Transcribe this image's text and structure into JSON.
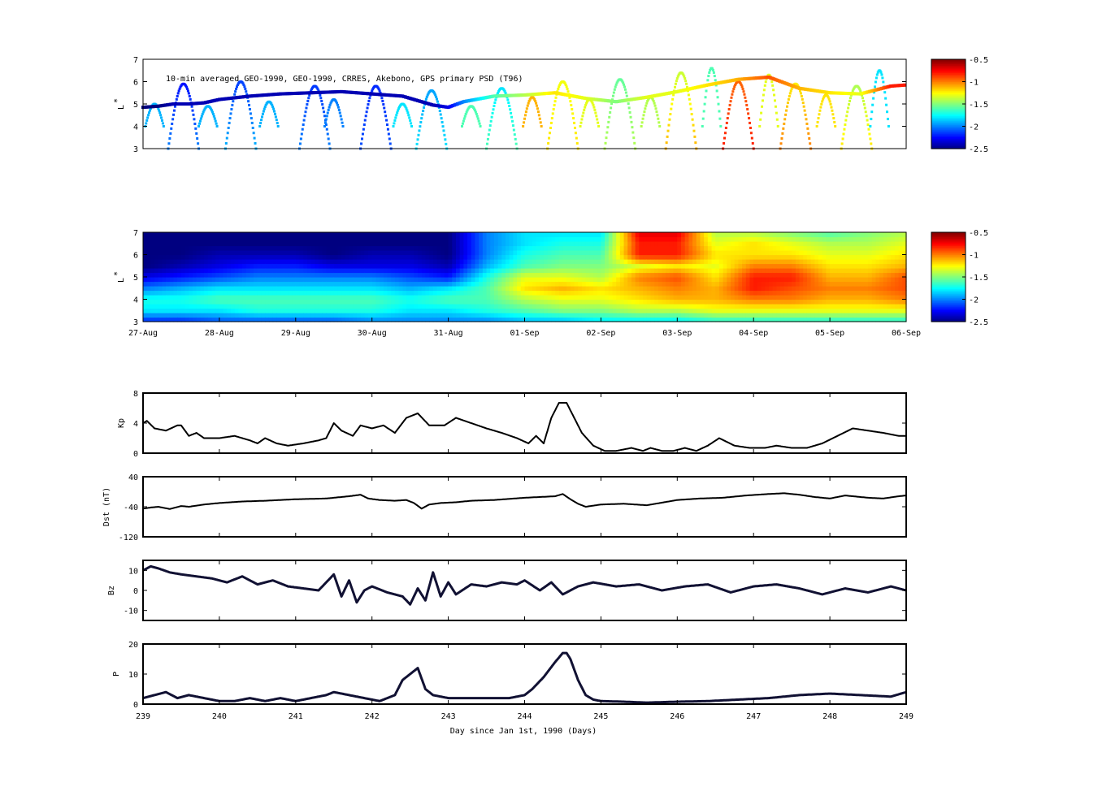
{
  "chart_data": [
    {
      "type": "scatter",
      "id": "psd_observed",
      "title": "10-min averaged GEO-1990, GEO-1990, CRRES, Akebono, GPS  primary PSD (T96)",
      "ylabel": "L*",
      "ylabel_main": "L",
      "ylabel_sup": "*",
      "x_unit": "day of year 1990",
      "xlim": [
        239,
        249
      ],
      "ylim": [
        3,
        7
      ],
      "yticks": [
        "7",
        "6",
        "5",
        "4",
        "3"
      ],
      "colorbar": {
        "min": -2.5,
        "max": -0.5,
        "ticks": [
          "-0.5",
          "-1",
          "-1.5",
          "-2",
          "-2.5"
        ],
        "colormap": "jet"
      },
      "geo_track": {
        "name": "GEO",
        "x": [
          239.0,
          239.2,
          239.4,
          239.6,
          239.8,
          240.0,
          240.4,
          240.8,
          241.2,
          241.6,
          242.0,
          242.4,
          242.8,
          243.0,
          243.2,
          243.6,
          244.0,
          244.4,
          244.8,
          245.2,
          245.6,
          246.0,
          246.4,
          246.8,
          247.2,
          247.6,
          248.0,
          248.4,
          248.8,
          249.0
        ],
        "y": [
          4.85,
          4.9,
          5.0,
          5.0,
          5.05,
          5.2,
          5.35,
          5.45,
          5.5,
          5.55,
          5.45,
          5.35,
          4.95,
          4.85,
          5.1,
          5.35,
          5.4,
          5.5,
          5.25,
          5.1,
          5.3,
          5.55,
          5.85,
          6.1,
          6.2,
          5.7,
          5.5,
          5.45,
          5.8,
          5.85
        ],
        "values": [
          -2.5,
          -2.5,
          -2.4,
          -2.4,
          -2.4,
          -2.4,
          -2.4,
          -2.4,
          -2.4,
          -2.4,
          -2.4,
          -2.4,
          -2.4,
          -2.3,
          -2.0,
          -1.6,
          -1.4,
          -1.2,
          -1.3,
          -1.5,
          -1.3,
          -1.3,
          -1.2,
          -1.1,
          -0.9,
          -1.1,
          -1.2,
          -1.3,
          -0.8,
          -0.8
        ]
      },
      "orbit_passes": {
        "name": "CRRES",
        "peak_x": [
          239.53,
          240.28,
          241.25,
          242.05,
          242.78,
          243.7,
          244.5,
          245.25,
          246.05,
          246.8,
          247.55,
          248.35
        ],
        "peak_y": [
          5.9,
          6.0,
          5.8,
          5.8,
          5.6,
          5.7,
          6.0,
          6.1,
          6.4,
          6.0,
          5.9,
          5.8
        ],
        "values_low_L": [
          -2.0,
          -1.9,
          -2.0,
          -2.1,
          -1.8,
          -1.6,
          -1.2,
          -1.4,
          -1.1,
          -0.8,
          -1.0,
          -1.2
        ],
        "values_high_L": [
          -2.3,
          -2.2,
          -2.2,
          -2.2,
          -2.0,
          -1.9,
          -1.3,
          -1.6,
          -1.4,
          -1.0,
          -1.3,
          -1.5
        ]
      },
      "secondary_passes": {
        "name": "Akebono",
        "peak_x": [
          239.15,
          239.85,
          240.65,
          241.5,
          242.4,
          243.3,
          244.1,
          244.85,
          245.65,
          246.45,
          247.2,
          247.95,
          248.65
        ],
        "peak_y": [
          5.0,
          4.9,
          5.1,
          5.2,
          5.0,
          4.9,
          5.3,
          5.2,
          5.3,
          6.6,
          6.3,
          5.4,
          6.5
        ],
        "values": [
          -1.9,
          -1.9,
          -1.9,
          -2.0,
          -1.8,
          -1.6,
          -1.1,
          -1.3,
          -1.4,
          -1.6,
          -1.3,
          -1.2,
          -1.8
        ]
      }
    },
    {
      "type": "heatmap",
      "id": "psd_reanalysis",
      "ylabel": "L*",
      "ylabel_main": "L",
      "ylabel_sup": "*",
      "x_unit": "day of year 1990",
      "xlim": [
        239,
        249
      ],
      "ylim": [
        3,
        7
      ],
      "yticks": [
        "7",
        "6",
        "5",
        "4",
        "3"
      ],
      "xticks": [
        "27-Aug",
        "28-Aug",
        "29-Aug",
        "30-Aug",
        "31-Aug",
        "01-Sep",
        "02-Sep",
        "03-Sep",
        "04-Sep",
        "05-Sep",
        "06-Sep"
      ],
      "colorbar": {
        "min": -2.5,
        "max": -0.5,
        "ticks": [
          "-0.5",
          "-1",
          "-1.5",
          "-2",
          "-2.5"
        ],
        "colormap": "jet"
      },
      "profile_days": [
        239.0,
        239.5,
        240.0,
        240.5,
        241.0,
        241.5,
        242.0,
        242.5,
        243.0,
        243.5,
        244.0,
        244.5,
        245.0,
        245.5,
        246.0,
        246.5,
        247.0,
        247.5,
        248.0,
        248.5,
        249.0
      ],
      "profile_L": [
        3.0,
        3.5,
        4.0,
        4.5,
        5.0,
        5.5,
        6.0,
        6.5,
        7.0
      ],
      "profile_values": [
        [
          -2.2,
          -1.8,
          -1.7,
          -2.0,
          -2.3,
          -2.5,
          -2.5,
          -2.5,
          -2.5
        ],
        [
          -2.2,
          -1.8,
          -1.7,
          -1.9,
          -2.2,
          -2.4,
          -2.5,
          -2.5,
          -2.5
        ],
        [
          -2.1,
          -1.8,
          -1.6,
          -1.8,
          -2.1,
          -2.3,
          -2.4,
          -2.5,
          -2.5
        ],
        [
          -2.1,
          -1.7,
          -1.6,
          -1.8,
          -2.0,
          -2.2,
          -2.4,
          -2.5,
          -2.5
        ],
        [
          -2.1,
          -1.7,
          -1.6,
          -1.8,
          -2.0,
          -2.2,
          -2.4,
          -2.5,
          -2.5
        ],
        [
          -2.1,
          -1.7,
          -1.6,
          -1.8,
          -2.0,
          -2.3,
          -2.5,
          -2.5,
          -2.5
        ],
        [
          -2.0,
          -1.7,
          -1.6,
          -1.8,
          -2.0,
          -2.3,
          -2.4,
          -2.5,
          -2.5
        ],
        [
          -2.0,
          -1.8,
          -1.7,
          -1.9,
          -2.1,
          -2.3,
          -2.4,
          -2.5,
          -2.5
        ],
        [
          -2.0,
          -1.8,
          -1.6,
          -1.8,
          -2.2,
          -2.4,
          -2.5,
          -2.5,
          -2.5
        ],
        [
          -2.0,
          -1.7,
          -1.6,
          -1.6,
          -1.7,
          -1.9,
          -2.0,
          -2.0,
          -2.0
        ],
        [
          -1.9,
          -1.6,
          -1.4,
          -1.2,
          -1.3,
          -1.6,
          -1.7,
          -1.8,
          -1.8
        ],
        [
          -1.9,
          -1.5,
          -1.3,
          -1.1,
          -1.3,
          -1.5,
          -1.6,
          -1.7,
          -1.8
        ],
        [
          -1.8,
          -1.5,
          -1.3,
          -1.2,
          -1.4,
          -1.5,
          -1.6,
          -1.7,
          -1.8
        ],
        [
          -1.8,
          -1.4,
          -1.2,
          -1.1,
          -1.0,
          -1.3,
          -0.8,
          -0.8,
          -0.7
        ],
        [
          -1.8,
          -1.4,
          -1.1,
          -1.0,
          -0.9,
          -1.2,
          -0.8,
          -0.8,
          -0.7
        ],
        [
          -1.7,
          -1.3,
          -1.1,
          -1.1,
          -1.2,
          -1.3,
          -1.2,
          -1.3,
          -1.4
        ],
        [
          -1.7,
          -1.3,
          -1.0,
          -0.8,
          -0.8,
          -1.0,
          -1.2,
          -1.2,
          -1.4
        ],
        [
          -1.7,
          -1.3,
          -1.0,
          -0.9,
          -0.8,
          -1.0,
          -1.2,
          -1.3,
          -1.5
        ],
        [
          -1.7,
          -1.3,
          -1.1,
          -1.0,
          -1.1,
          -1.2,
          -1.3,
          -1.4,
          -1.6
        ],
        [
          -1.7,
          -1.3,
          -1.1,
          -1.0,
          -1.1,
          -1.2,
          -1.3,
          -1.4,
          -1.5
        ],
        [
          -1.7,
          -1.3,
          -1.0,
          -0.9,
          -0.9,
          -1.1,
          -1.2,
          -1.3,
          -1.4
        ]
      ]
    },
    {
      "type": "line",
      "id": "kp",
      "ylabel": "Kp",
      "xlim": [
        239,
        249
      ],
      "ylim": [
        0,
        8
      ],
      "yticks": [
        "8",
        "4",
        "0"
      ],
      "series": [
        {
          "x": [
            239.0,
            239.05,
            239.15,
            239.3,
            239.45,
            239.5,
            239.6,
            239.7,
            239.8,
            240.0,
            240.2,
            240.4,
            240.5,
            240.6,
            240.75,
            240.9,
            241.1,
            241.3,
            241.4,
            241.5,
            241.6,
            241.75,
            241.85,
            242.0,
            242.15,
            242.3,
            242.45,
            242.6,
            242.75,
            242.95,
            243.1,
            243.3,
            243.5,
            243.7,
            243.9,
            244.05,
            244.15,
            244.25,
            244.35,
            244.45,
            244.55,
            244.65,
            244.75,
            244.9,
            245.05,
            245.2,
            245.4,
            245.55,
            245.65,
            245.8,
            245.95,
            246.1,
            246.25,
            246.4,
            246.55,
            246.75,
            246.95,
            247.15,
            247.3,
            247.5,
            247.7,
            247.9,
            248.1,
            248.3,
            248.5,
            248.7,
            248.9,
            249.0
          ],
          "values": [
            4,
            4.3,
            3.3,
            3.0,
            3.7,
            3.7,
            2.3,
            2.7,
            2.0,
            2.0,
            2.3,
            1.7,
            1.3,
            2.0,
            1.3,
            1.0,
            1.3,
            1.7,
            2.0,
            4.0,
            3.0,
            2.3,
            3.7,
            3.3,
            3.7,
            2.7,
            4.7,
            5.3,
            3.7,
            3.7,
            4.7,
            4.0,
            3.3,
            2.7,
            2.0,
            1.3,
            2.3,
            1.3,
            4.7,
            6.7,
            6.7,
            4.7,
            2.7,
            1.0,
            0.3,
            0.3,
            0.7,
            0.3,
            0.7,
            0.3,
            0.3,
            0.7,
            0.3,
            1.0,
            2.0,
            1.0,
            0.7,
            0.7,
            1.0,
            0.7,
            0.7,
            1.3,
            2.3,
            3.3,
            3.0,
            2.7,
            2.3,
            2.3
          ]
        }
      ]
    },
    {
      "type": "line",
      "id": "dst",
      "ylabel": "Dst (nT)",
      "xlim": [
        239,
        249
      ],
      "ylim": [
        -120,
        40
      ],
      "yticks": [
        "40",
        "-40",
        "-120"
      ],
      "series": [
        {
          "x": [
            239.0,
            239.1,
            239.2,
            239.35,
            239.5,
            239.6,
            239.8,
            240.0,
            240.3,
            240.6,
            241.0,
            241.4,
            241.7,
            241.85,
            241.95,
            242.1,
            242.3,
            242.45,
            242.55,
            242.65,
            242.75,
            242.9,
            243.1,
            243.3,
            243.6,
            244.0,
            244.2,
            244.4,
            244.5,
            244.6,
            244.7,
            244.8,
            245.0,
            245.3,
            245.6,
            246.0,
            246.3,
            246.6,
            246.9,
            247.2,
            247.4,
            247.6,
            247.8,
            248.0,
            248.2,
            248.5,
            248.7,
            248.9,
            249.0
          ],
          "values": [
            -45,
            -42,
            -40,
            -46,
            -38,
            -40,
            -34,
            -30,
            -26,
            -24,
            -20,
            -18,
            -12,
            -8,
            -18,
            -22,
            -24,
            -22,
            -30,
            -45,
            -34,
            -30,
            -28,
            -24,
            -22,
            -16,
            -14,
            -12,
            -6,
            -20,
            -32,
            -40,
            -34,
            -32,
            -36,
            -22,
            -18,
            -16,
            -10,
            -6,
            -4,
            -8,
            -14,
            -18,
            -10,
            -16,
            -18,
            -12,
            -10
          ]
        }
      ]
    },
    {
      "type": "line",
      "id": "bz",
      "ylabel": "Bz",
      "xlim": [
        239,
        249
      ],
      "ylim": [
        -15,
        15
      ],
      "yticks": [
        "10",
        "0",
        "-10"
      ],
      "series": [
        {
          "x": [
            239.0,
            239.1,
            239.2,
            239.35,
            239.5,
            239.7,
            239.9,
            240.1,
            240.3,
            240.5,
            240.7,
            240.9,
            241.1,
            241.3,
            241.5,
            241.6,
            241.7,
            241.8,
            241.9,
            242.0,
            242.2,
            242.4,
            242.5,
            242.6,
            242.7,
            242.8,
            242.9,
            243.0,
            243.1,
            243.3,
            243.5,
            243.7,
            243.9,
            244.0,
            244.2,
            244.35,
            244.5,
            244.7,
            244.9,
            245.2,
            245.5,
            245.8,
            246.1,
            246.4,
            246.7,
            247.0,
            247.3,
            247.6,
            247.9,
            248.2,
            248.5,
            248.8,
            249.0
          ],
          "values": [
            10,
            12,
            11,
            9,
            8,
            7,
            6,
            4,
            7,
            3,
            5,
            2,
            1,
            0,
            8,
            -3,
            5,
            -6,
            0,
            2,
            -1,
            -3,
            -7,
            1,
            -5,
            9,
            -3,
            4,
            -2,
            3,
            2,
            4,
            3,
            5,
            0,
            4,
            -2,
            2,
            4,
            2,
            3,
            0,
            2,
            3,
            -1,
            2,
            3,
            1,
            -2,
            1,
            -1,
            2,
            0
          ]
        }
      ]
    },
    {
      "type": "line",
      "id": "pressure",
      "ylabel": "P",
      "xlabel": "Day since Jan 1st, 1990 (Days)",
      "xlim": [
        239,
        249
      ],
      "xticks": [
        "239",
        "240",
        "241",
        "242",
        "243",
        "244",
        "245",
        "246",
        "247",
        "248",
        "249"
      ],
      "ylim": [
        0,
        20
      ],
      "yticks": [
        "20",
        "10",
        "0"
      ],
      "series": [
        {
          "x": [
            239.0,
            239.15,
            239.3,
            239.45,
            239.6,
            239.8,
            240.0,
            240.2,
            240.4,
            240.6,
            240.8,
            241.0,
            241.2,
            241.4,
            241.5,
            241.7,
            241.9,
            242.1,
            242.3,
            242.4,
            242.5,
            242.6,
            242.7,
            242.8,
            243.0,
            243.2,
            243.4,
            243.6,
            243.8,
            244.0,
            244.1,
            244.25,
            244.4,
            244.5,
            244.55,
            244.6,
            244.7,
            244.8,
            244.9,
            245.0,
            245.3,
            245.6,
            246.0,
            246.4,
            246.8,
            247.2,
            247.6,
            248.0,
            248.4,
            248.8,
            249.0
          ],
          "values": [
            2,
            3,
            4,
            2,
            3,
            2,
            1,
            1,
            2,
            1,
            2,
            1,
            2,
            3,
            4,
            3,
            2,
            1,
            3,
            8,
            10,
            12,
            5,
            3,
            2,
            2,
            2,
            2,
            2,
            3,
            5,
            9,
            14,
            17,
            17,
            15,
            8,
            3,
            1.5,
            1,
            0.8,
            0.5,
            0.8,
            1,
            1.5,
            2,
            3,
            3.5,
            3,
            2.5,
            4
          ]
        }
      ]
    }
  ]
}
